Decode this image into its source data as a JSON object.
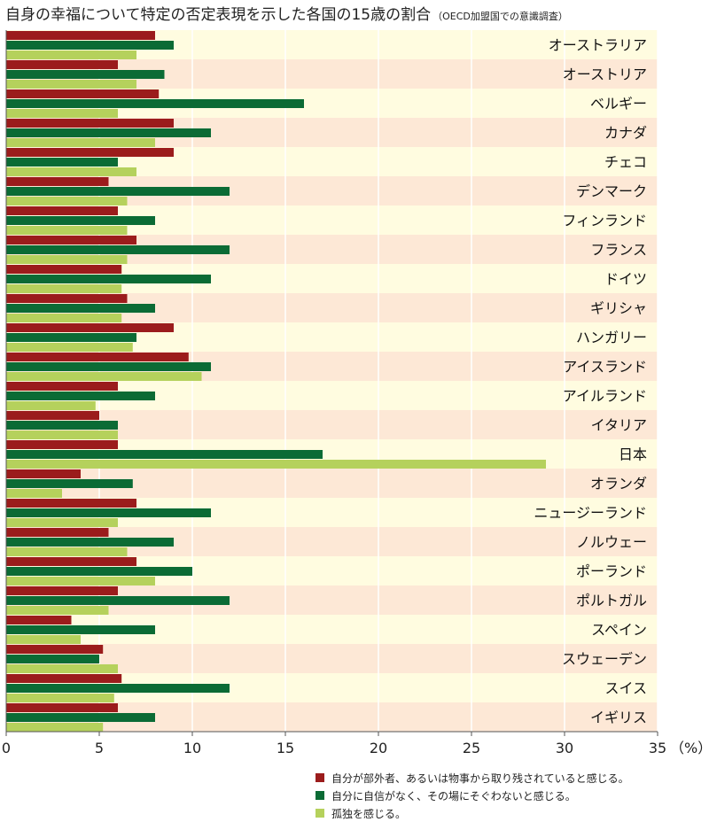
{
  "title": {
    "main": "自身の幸福について特定の否定表現を示した各国の15歳の割合",
    "sub": "（OECD加盟国での意識調査）"
  },
  "colors": {
    "band_light": "#fffce0",
    "band_dark": "#fde8d6",
    "gridline": "#ffffff",
    "axis": "#555555"
  },
  "chart_data": {
    "type": "bar",
    "orientation": "horizontal",
    "title": "自身の幸福について特定の否定表現を示した各国の15歳の割合（OECD加盟国での意識調査）",
    "xlabel": "（%）",
    "xlim": [
      0,
      35
    ],
    "xticks": [
      0,
      5,
      10,
      15,
      20,
      25,
      30,
      35
    ],
    "grid": true,
    "legend_position": "bottom-right",
    "categories": [
      "オーストラリア",
      "オーストリア",
      "ベルギー",
      "カナダ",
      "チェコ",
      "デンマーク",
      "フィンランド",
      "フランス",
      "ドイツ",
      "ギリシャ",
      "ハンガリー",
      "アイスランド",
      "アイルランド",
      "イタリア",
      "日本",
      "オランダ",
      "ニュージーランド",
      "ノルウェー",
      "ポーランド",
      "ポルトガル",
      "スペイン",
      "スウェーデン",
      "スイス",
      "イギリス"
    ],
    "series": [
      {
        "name": "自分が部外者、あるいは物事から取り残されていると感じる。",
        "color": "#9b1c1c",
        "values": [
          8,
          6,
          8.2,
          9,
          9,
          5.5,
          6,
          7,
          6.2,
          6.5,
          9,
          9.8,
          6,
          5,
          6,
          4,
          7,
          5.5,
          7,
          6,
          3.5,
          5.2,
          6.2,
          6
        ]
      },
      {
        "name": "自分に自信がなく、その場にそぐわないと感じる。",
        "color": "#0b6b35",
        "values": [
          9,
          8.5,
          16,
          11,
          6,
          12,
          8,
          12,
          11,
          8,
          7,
          11,
          8,
          6,
          17,
          6.8,
          11,
          9,
          10,
          12,
          8,
          5,
          12,
          8
        ]
      },
      {
        "name": "孤独を感じる。",
        "color": "#b5d15c",
        "values": [
          7,
          7,
          6,
          8,
          7,
          6.5,
          6.5,
          6.5,
          6.2,
          6.2,
          6.8,
          10.5,
          4.8,
          6,
          29,
          3,
          6,
          6.5,
          8,
          5.5,
          4,
          6,
          5.8,
          5.2
        ]
      }
    ]
  }
}
